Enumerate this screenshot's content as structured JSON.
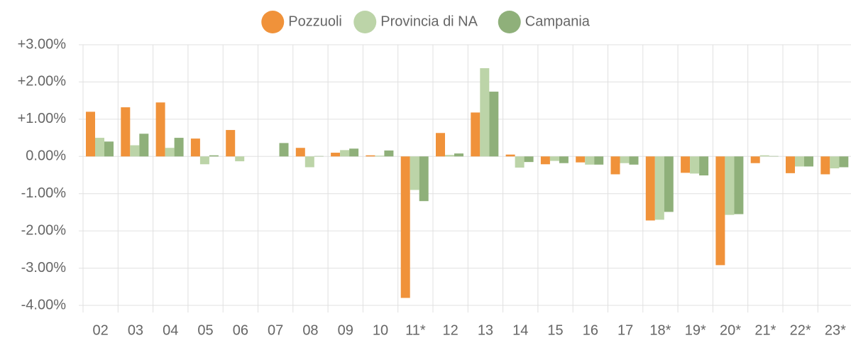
{
  "chart_data": {
    "type": "bar",
    "categories": [
      "02",
      "03",
      "04",
      "05",
      "06",
      "07",
      "08",
      "09",
      "10",
      "11*",
      "12",
      "13",
      "14",
      "15",
      "16",
      "17",
      "18*",
      "19*",
      "20*",
      "21*",
      "22*",
      "23*"
    ],
    "series": [
      {
        "name": "Pozzuoli",
        "color": "#f0923a",
        "values": [
          1.2,
          1.32,
          1.45,
          0.48,
          0.71,
          0,
          0.23,
          0.1,
          0.03,
          -3.8,
          0.63,
          1.18,
          0.05,
          -0.21,
          -0.16,
          -0.48,
          -1.72,
          -0.44,
          -2.92,
          -0.18,
          -0.45,
          -0.48
        ]
      },
      {
        "name": "Provincia di NA",
        "color": "#bcd4a8",
        "values": [
          0.5,
          0.3,
          0.23,
          -0.21,
          -0.13,
          0,
          -0.29,
          0.17,
          0.02,
          -0.9,
          0.04,
          2.37,
          -0.3,
          -0.12,
          -0.22,
          -0.18,
          -1.7,
          -0.46,
          -1.57,
          0.03,
          -0.27,
          -0.32
        ]
      },
      {
        "name": "Campania",
        "color": "#8fb07a",
        "values": [
          0.4,
          0.61,
          0.5,
          0.03,
          0,
          0.36,
          0.01,
          0.21,
          0.16,
          -1.2,
          0.08,
          1.74,
          -0.15,
          -0.18,
          -0.22,
          -0.22,
          -1.49,
          -0.51,
          -1.55,
          0.01,
          -0.27,
          -0.29
        ]
      }
    ],
    "ylim": [
      -4,
      3
    ],
    "yticks": [
      {
        "value": -4,
        "label": "-4.00%"
      },
      {
        "value": -3,
        "label": "-3.00%"
      },
      {
        "value": -2,
        "label": "-2.00%"
      },
      {
        "value": -1,
        "label": "-1.00%"
      },
      {
        "value": 0,
        "label": "0.00%"
      },
      {
        "value": 1,
        "label": "+1.00%"
      },
      {
        "value": 2,
        "label": "+2.00%"
      },
      {
        "value": 3,
        "label": "+3.00%"
      }
    ],
    "grid": true,
    "legend": "top"
  }
}
